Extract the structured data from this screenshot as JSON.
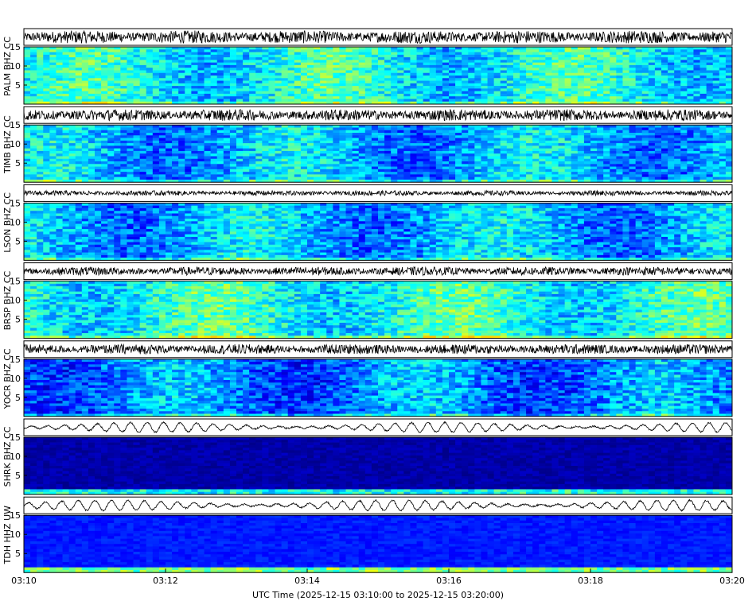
{
  "chart_data": {
    "type": "heatmap",
    "description_kind": "seismogram-spectrogram-stack",
    "x_axis": {
      "label": "UTC Time (2025-12-15 03:10:00 to 2025-12-15 03:20:00)",
      "range": [
        "03:10",
        "03:20"
      ],
      "tick_labels": [
        "03:10",
        "03:12",
        "03:14",
        "03:16",
        "03:18",
        "03:20"
      ]
    },
    "y_axis": {
      "range": [
        0,
        15
      ],
      "tick_labels": [
        "5",
        "10",
        "15"
      ]
    },
    "colormap": "jet",
    "colors": {
      "low": "#00008f",
      "mid": "#00bfff",
      "high": "#ffff00",
      "trace": "#000000"
    },
    "channels": [
      {
        "label": "PALM BHZ CC",
        "level": 0.38,
        "amp": 0.9,
        "style": "noisy"
      },
      {
        "label": "TIMB BHZ CC",
        "level": 0.3,
        "amp": 0.8,
        "style": "noisy"
      },
      {
        "label": "LSON BHZ CC",
        "level": 0.3,
        "amp": 0.35,
        "style": "noisy"
      },
      {
        "label": "BRSP BHZ CC",
        "level": 0.4,
        "amp": 0.6,
        "style": "noisy"
      },
      {
        "label": "YOCR BHZ CC",
        "level": 0.25,
        "amp": 0.7,
        "style": "noisy"
      },
      {
        "label": "SHRK BHZ CC",
        "level": 0.04,
        "amp": 0.85,
        "style": "microseism"
      },
      {
        "label": "TDH HHZ UW",
        "level": 0.15,
        "amp": 0.9,
        "style": "microseism"
      }
    ]
  }
}
